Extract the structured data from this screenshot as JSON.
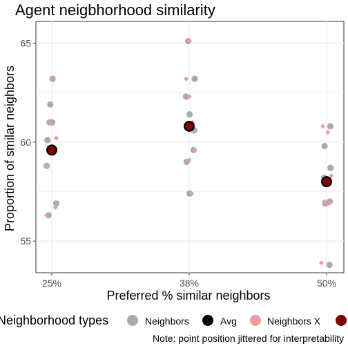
{
  "chart_data": {
    "type": "scatter",
    "title": "Agent neigbhorhood similarity",
    "xlabel": "Preferred % similar neighbors",
    "ylabel": "Proportion of smilar neighbors",
    "categories": [
      "25%",
      "38%",
      "50%"
    ],
    "y_ticks": [
      55,
      60,
      65
    ],
    "ylim": [
      53.4,
      66.1
    ],
    "grid": true,
    "legend_placement": "bottom",
    "legend_title": "Neighborhood types",
    "legend_entries": [
      "Neighbors",
      "Avg",
      "Neighbors X",
      ""
    ],
    "caption": "Note: point position jittered for interpretability",
    "colors": {
      "neighbors": "#aaaaaa",
      "avg": "#000000",
      "neighbors_x": "#e8a0a0",
      "avg_x": "#800000",
      "grid": "#ebebeb",
      "axis_text": "#4d4d4d"
    },
    "series": [
      {
        "key": "neighbors",
        "points": [
          {
            "x": "25%",
            "y": 63.2
          },
          {
            "x": "25%",
            "y": 61.9
          },
          {
            "x": "25%",
            "y": 61.0
          },
          {
            "x": "25%",
            "y": 61.0
          },
          {
            "x": "25%",
            "y": 60.1
          },
          {
            "x": "25%",
            "y": 58.8
          },
          {
            "x": "25%",
            "y": 56.9
          },
          {
            "x": "25%",
            "y": 56.3
          },
          {
            "x": "38%",
            "y": 65.1
          },
          {
            "x": "38%",
            "y": 63.2
          },
          {
            "x": "38%",
            "y": 62.3
          },
          {
            "x": "38%",
            "y": 61.4
          },
          {
            "x": "38%",
            "y": 60.6
          },
          {
            "x": "38%",
            "y": 59.6
          },
          {
            "x": "38%",
            "y": 59.0
          },
          {
            "x": "38%",
            "y": 57.4
          },
          {
            "x": "50%",
            "y": 60.8
          },
          {
            "x": "50%",
            "y": 59.8
          },
          {
            "x": "50%",
            "y": 58.7
          },
          {
            "x": "50%",
            "y": 58.2
          },
          {
            "x": "50%",
            "y": 57.0
          },
          {
            "x": "50%",
            "y": 56.9
          },
          {
            "x": "50%",
            "y": 53.8
          }
        ]
      },
      {
        "key": "neighbors_x",
        "points": [
          {
            "x": "25%",
            "y": 63.2
          },
          {
            "x": "25%",
            "y": 61.0
          },
          {
            "x": "25%",
            "y": 60.2
          },
          {
            "x": "25%",
            "y": 58.8
          },
          {
            "x": "25%",
            "y": 56.7
          },
          {
            "x": "25%",
            "y": 56.3
          },
          {
            "x": "38%",
            "y": 65.1
          },
          {
            "x": "38%",
            "y": 63.2
          },
          {
            "x": "38%",
            "y": 62.3
          },
          {
            "x": "38%",
            "y": 61.0
          },
          {
            "x": "38%",
            "y": 60.6
          },
          {
            "x": "38%",
            "y": 59.6
          },
          {
            "x": "38%",
            "y": 59.1
          },
          {
            "x": "38%",
            "y": 57.4
          },
          {
            "x": "50%",
            "y": 60.8
          },
          {
            "x": "50%",
            "y": 60.5
          },
          {
            "x": "50%",
            "y": 58.3
          },
          {
            "x": "50%",
            "y": 57.0
          },
          {
            "x": "50%",
            "y": 56.9
          },
          {
            "x": "50%",
            "y": 53.9
          }
        ]
      },
      {
        "key": "avg",
        "points": [
          {
            "x": "25%",
            "y": 59.6
          },
          {
            "x": "38%",
            "y": 60.8
          },
          {
            "x": "50%",
            "y": 58.0
          }
        ]
      },
      {
        "key": "avg_x",
        "points": [
          {
            "x": "25%",
            "y": 59.6
          },
          {
            "x": "38%",
            "y": 60.8
          },
          {
            "x": "50%",
            "y": 58.0
          }
        ]
      }
    ]
  }
}
